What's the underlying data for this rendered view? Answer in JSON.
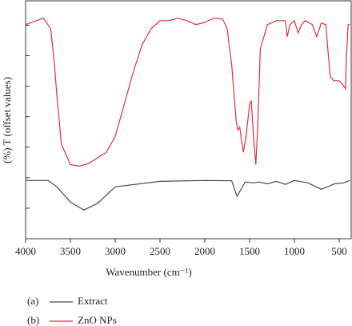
{
  "chart_data": {
    "type": "line",
    "xlabel": "Wavenumber (cm⁻¹)",
    "ylabel": "(%) T (offset values)",
    "xlim": [
      4000,
      366
    ],
    "xticks": [
      4000,
      3500,
      3000,
      2500,
      2000,
      1500,
      1000,
      500
    ],
    "ylim": [
      0,
      7.8
    ],
    "yticks": [
      1,
      2,
      3,
      4,
      5,
      6,
      7
    ],
    "series": [
      {
        "tag": "(a)",
        "name": "Extract",
        "color": "#4a4a4a",
        "x": [
          4000,
          3750,
          3650,
          3500,
          3350,
          3200,
          3000,
          2500,
          2000,
          1700,
          1640,
          1550,
          1450,
          1400,
          1300,
          1200,
          1100,
          1000,
          850,
          700,
          550,
          450,
          380
        ],
        "values": [
          1.91,
          1.91,
          1.7,
          1.2,
          0.94,
          1.15,
          1.7,
          1.88,
          1.91,
          1.9,
          1.39,
          1.86,
          1.83,
          1.86,
          1.8,
          1.88,
          1.78,
          1.91,
          1.83,
          1.62,
          1.8,
          1.83,
          1.91
        ]
      },
      {
        "tag": "(b)",
        "name": "ZnO NPs",
        "color": "#e0323c",
        "x": [
          4000,
          3800,
          3720,
          3680,
          3650,
          3600,
          3500,
          3400,
          3300,
          3100,
          3000,
          2900,
          2800,
          2700,
          2600,
          2500,
          2400,
          2300,
          2200,
          2100,
          2000,
          1900,
          1800,
          1750,
          1700,
          1650,
          1630,
          1610,
          1590,
          1570,
          1540,
          1500,
          1480,
          1460,
          1430,
          1410,
          1380,
          1300,
          1200,
          1100,
          1080,
          1050,
          1000,
          960,
          920,
          880,
          800,
          750,
          700,
          650,
          620,
          600,
          560,
          500,
          460,
          430,
          420,
          400,
          380
        ],
        "values": [
          7.02,
          7.23,
          6.88,
          5.8,
          4.66,
          3.09,
          2.43,
          2.38,
          2.46,
          2.83,
          3.35,
          4.4,
          5.45,
          6.36,
          6.88,
          7.15,
          7.15,
          7.23,
          7.15,
          7.02,
          7.09,
          7.23,
          7.2,
          6.88,
          5.71,
          3.87,
          3.56,
          3.66,
          3.22,
          2.83,
          3.35,
          4.4,
          4.53,
          3.48,
          2.43,
          3.66,
          6.23,
          7.02,
          7.15,
          7.15,
          6.62,
          7.02,
          7.15,
          6.75,
          7.02,
          7.15,
          7.02,
          6.62,
          7.07,
          7.02,
          5.97,
          5.31,
          5.18,
          5.18,
          5.05,
          4.92,
          5.97,
          7.02,
          7.02
        ]
      }
    ]
  }
}
